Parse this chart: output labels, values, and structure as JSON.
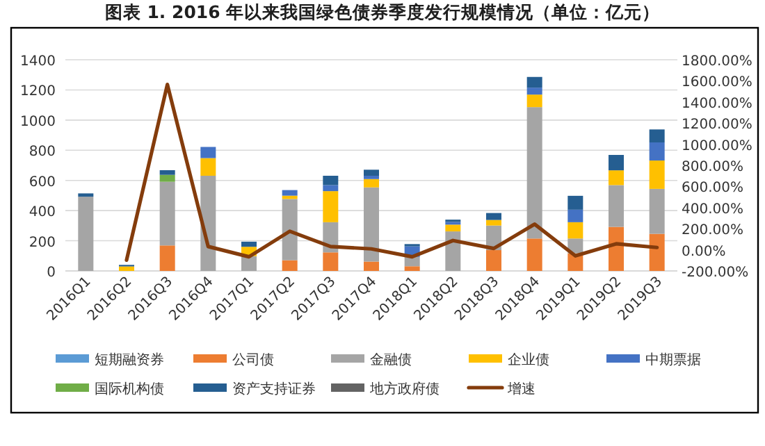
{
  "chart_data": {
    "type": "bar",
    "stacked": true,
    "title": "图表 1.   2016 年以来我国绿色债券季度发行规模情况（单位：亿元）",
    "categories": [
      "2016Q1",
      "2016Q2",
      "2016Q3",
      "2016Q4",
      "2017Q1",
      "2017Q2",
      "2017Q3",
      "2017Q4",
      "2018Q1",
      "2018Q2",
      "2018Q3",
      "2018Q4",
      "2019Q1",
      "2019Q2",
      "2019Q3"
    ],
    "series": [
      {
        "name": "短期融资券",
        "color": "#5b9bd5",
        "values": [
          0,
          0,
          0,
          0,
          0,
          0,
          0,
          0,
          0,
          0,
          0,
          0,
          0,
          0,
          0
        ]
      },
      {
        "name": "公司债",
        "color": "#ed7d31",
        "values": [
          0,
          0,
          169,
          0,
          0,
          71,
          123,
          62,
          31,
          0,
          138,
          215,
          117,
          292,
          246
        ]
      },
      {
        "name": "金融债",
        "color": "#a5a5a5",
        "values": [
          492,
          0,
          422,
          631,
          98,
          406,
          200,
          492,
          62,
          262,
          163,
          871,
          98,
          277,
          298
        ]
      },
      {
        "name": "企业债",
        "color": "#ffc000",
        "values": [
          0,
          30,
          0,
          117,
          62,
          22,
          206,
          55,
          0,
          45,
          37,
          83,
          108,
          98,
          188
        ]
      },
      {
        "name": "中期票据",
        "color": "#4472c4",
        "values": [
          0,
          0,
          0,
          74,
          0,
          37,
          40,
          22,
          70,
          18,
          0,
          46,
          83,
          0,
          120
        ]
      },
      {
        "name": "国际机构债",
        "color": "#70ad47",
        "values": [
          0,
          0,
          46,
          0,
          0,
          0,
          0,
          0,
          0,
          0,
          0,
          0,
          0,
          0,
          0
        ]
      },
      {
        "name": "资产支持证券",
        "color": "#255e91",
        "values": [
          22,
          10,
          31,
          0,
          34,
          0,
          62,
          40,
          15,
          15,
          46,
          71,
          92,
          102,
          86
        ]
      },
      {
        "name": "地方政府债",
        "color": "#636363",
        "values": [
          0,
          0,
          0,
          0,
          0,
          0,
          0,
          0,
          0,
          0,
          0,
          0,
          0,
          0,
          0
        ]
      },
      {
        "name": "增速",
        "color": "#843c0c",
        "type": "line",
        "axis": "y2",
        "line_style": "solid",
        "values": [
          null,
          -97,
          1566,
          31,
          -66,
          176,
          31,
          9,
          -66,
          88,
          13,
          243,
          -57,
          57,
          22
        ]
      }
    ],
    "ylim": [
      0,
      1400
    ],
    "yticks": [
      0,
      200,
      400,
      600,
      800,
      1000,
      1200,
      1400
    ],
    "y2lim": [
      -200,
      1800
    ],
    "y2ticks": [
      {
        "value": -200,
        "label": "-200.00%"
      },
      {
        "value": 0,
        "label": "0.00%"
      },
      {
        "value": 200,
        "label": "200.00%"
      },
      {
        "value": 400,
        "label": "400.00%"
      },
      {
        "value": 600,
        "label": "600.00%"
      },
      {
        "value": 800,
        "label": "800.00%"
      },
      {
        "value": 1000,
        "label": "1000.00%"
      },
      {
        "value": 1200,
        "label": "1200.00%"
      },
      {
        "value": 1400,
        "label": "1400.00%"
      },
      {
        "value": 1600,
        "label": "1600.00%"
      },
      {
        "value": 1800,
        "label": "1800.00%"
      }
    ],
    "grid": "y",
    "legend": "bottom",
    "marker": "none"
  }
}
